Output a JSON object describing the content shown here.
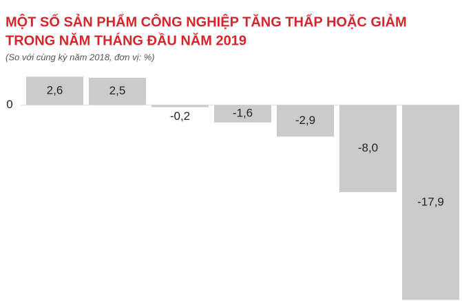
{
  "chart_data": {
    "type": "bar",
    "title": [
      "MỘT SỐ SẢN PHẨM CÔNG NGHIỆP TĂNG THẤP HOẶC GIẢM",
      "TRONG NĂM THÁNG ĐẦU NĂM 2019"
    ],
    "subtitle": "(So với cùng kỳ năm 2018, đơn vị: %)",
    "categories": [
      null,
      null,
      null,
      null,
      null,
      null,
      null
    ],
    "values": [
      2.6,
      2.5,
      -0.2,
      -1.6,
      -2.9,
      -8.0,
      -17.9
    ],
    "value_labels": [
      "2,6",
      "2,5",
      "-0,2",
      "-1,6",
      "-2,9",
      "-8,0",
      "-17,9"
    ],
    "color": "#cbcbcb",
    "ylim": [
      -18,
      3
    ],
    "yticks": [
      0
    ],
    "grid": true
  }
}
